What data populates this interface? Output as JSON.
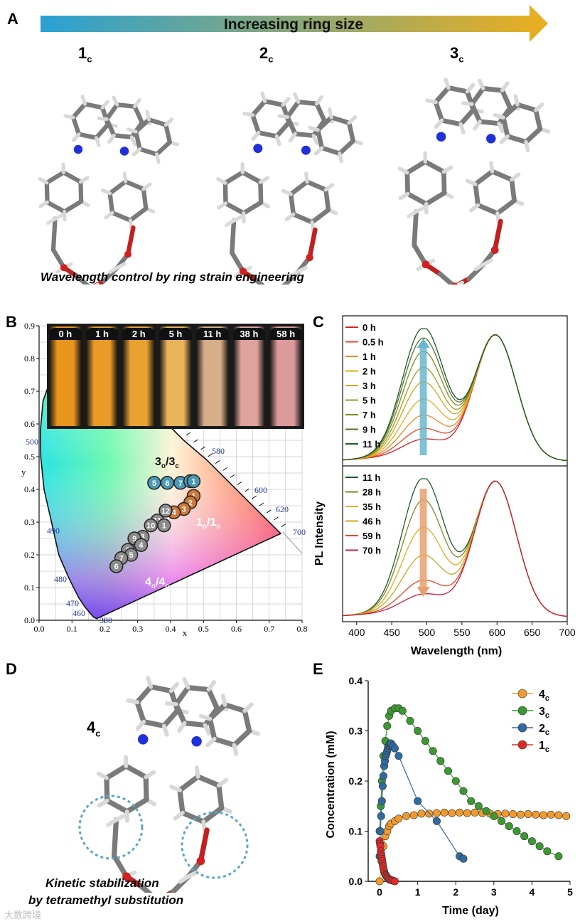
{
  "panel_a": {
    "label": "A",
    "arrow_text": "Increasing ring size",
    "arrow_colors": [
      "#2aa1d4",
      "#ecae1e"
    ],
    "molecules": [
      {
        "name": "1",
        "sub": "c"
      },
      {
        "name": "2",
        "sub": "c"
      },
      {
        "name": "3",
        "sub": "c"
      }
    ],
    "caption": "Wavelength control by ring strain engineering"
  },
  "panel_b": {
    "label": "B",
    "vial_times": [
      "0 h",
      "1 h",
      "2 h",
      "5 h",
      "11 h",
      "38 h",
      "58 h"
    ],
    "vial_colors": [
      "#e8951c",
      "#e99a28",
      "#e9a232",
      "#e7b45a",
      "#d6ae8a",
      "#e0a29c",
      "#dc9a9c"
    ],
    "region_labels": [
      {
        "name": "3",
        "sub": "o",
        "rest": "/3",
        "rest_sub": "c"
      },
      {
        "name": "1",
        "sub": "o",
        "rest": "/1",
        "rest_sub": "c"
      },
      {
        "name": "4",
        "sub": "o",
        "rest": "/4",
        "rest_sub": "c"
      }
    ],
    "locus_wavelengths": [
      "380",
      "460",
      "470",
      "480",
      "490",
      "500",
      "580",
      "600",
      "620",
      "700"
    ],
    "chart_data": {
      "type": "scatter",
      "xlabel": "x",
      "ylabel": "y",
      "xlim": [
        0,
        0.8
      ],
      "ylim": [
        0,
        0.9
      ],
      "xticks": [
        "0.0",
        "0.1",
        "0.2",
        "0.3",
        "0.4",
        "0.5",
        "0.6",
        "0.7",
        "0.8"
      ],
      "yticks": [
        "0.0",
        "0.1",
        "0.2",
        "0.3",
        "0.4",
        "0.5",
        "0.6",
        "0.7",
        "0.8",
        "0.9"
      ],
      "series": [
        {
          "color": "#4a9ab5",
          "points": [
            {
              "label": "5",
              "x": 0.35,
              "y": 0.42
            },
            {
              "label": "6",
              "x": 0.39,
              "y": 0.42
            },
            {
              "label": "7",
              "x": 0.43,
              "y": 0.42
            },
            {
              "label": "8",
              "x": 0.46,
              "y": 0.425
            },
            {
              "label": "1",
              "x": 0.47,
              "y": 0.425
            }
          ]
        },
        {
          "color": "#d07838",
          "points": [
            {
              "label": "1",
              "x": 0.47,
              "y": 0.38
            },
            {
              "label": "2",
              "x": 0.46,
              "y": 0.36
            },
            {
              "label": "3",
              "x": 0.44,
              "y": 0.34
            },
            {
              "label": "4",
              "x": 0.41,
              "y": 0.33
            }
          ]
        },
        {
          "color": "#8c8c8c",
          "points": [
            {
              "label": "12",
              "x": 0.385,
              "y": 0.335
            },
            {
              "label": "11",
              "x": 0.36,
              "y": 0.305
            },
            {
              "label": "10",
              "x": 0.34,
              "y": 0.29
            },
            {
              "label": "1",
              "x": 0.38,
              "y": 0.29
            },
            {
              "label": "3",
              "x": 0.315,
              "y": 0.255
            },
            {
              "label": "9",
              "x": 0.29,
              "y": 0.25
            },
            {
              "label": "4",
              "x": 0.31,
              "y": 0.23
            },
            {
              "label": "8",
              "x": 0.27,
              "y": 0.215
            },
            {
              "label": "5",
              "x": 0.28,
              "y": 0.2
            },
            {
              "label": "7",
              "x": 0.25,
              "y": 0.19
            },
            {
              "label": "6",
              "x": 0.235,
              "y": 0.165
            }
          ]
        }
      ]
    }
  },
  "panel_c": {
    "label": "C",
    "chart_data": {
      "type": "line",
      "xlabel": "Wavelength (nm)",
      "ylabel": "PL Intensity",
      "xlim": [
        380,
        700
      ],
      "xticks": [
        "400",
        "450",
        "500",
        "550",
        "600",
        "650",
        "700"
      ],
      "top_legend": [
        {
          "name": "0 h",
          "color": "#d8202a"
        },
        {
          "name": "0.5 h",
          "color": "#e24a2a"
        },
        {
          "name": "1 h",
          "color": "#ea8a22"
        },
        {
          "name": "2 h",
          "color": "#e9a91e"
        },
        {
          "name": "3 h",
          "color": "#c8a81c"
        },
        {
          "name": "5 h",
          "color": "#a49a20"
        },
        {
          "name": "7 h",
          "color": "#7c8a24"
        },
        {
          "name": "9 h",
          "color": "#4d7628"
        },
        {
          "name": "11 h",
          "color": "#1e5a28"
        }
      ],
      "bottom_legend": [
        {
          "name": "11 h",
          "color": "#1e5a28"
        },
        {
          "name": "28 h",
          "color": "#7c8a24"
        },
        {
          "name": "35 h",
          "color": "#e9a91e"
        },
        {
          "name": "46 h",
          "color": "#c8a81c"
        },
        {
          "name": "59 h",
          "color": "#e24a2a"
        },
        {
          "name": "70 h",
          "color": "#c8203a"
        }
      ],
      "top_shoulder_intensity": [
        0.12,
        0.2,
        0.3,
        0.42,
        0.55,
        0.66,
        0.78,
        0.88,
        0.96
      ],
      "bottom_shoulder_intensity": [
        0.96,
        0.8,
        0.6,
        0.4,
        0.22,
        0.12
      ],
      "arrow_top_color": "#6bb6cf",
      "arrow_bottom_color": "#e9a070"
    }
  },
  "panel_d": {
    "label": "D",
    "molecule": {
      "name": "4",
      "sub": "c"
    },
    "caption_line1": "Kinetic stabilization",
    "caption_line2": "by tetramethyl substitution"
  },
  "panel_e": {
    "label": "E",
    "chart_data": {
      "type": "line",
      "xlabel": "Time (day)",
      "ylabel": "Concentration (mM)",
      "xlim": [
        -0.3,
        5
      ],
      "ylim": [
        0,
        0.4
      ],
      "xticks": [
        "0",
        "1",
        "2",
        "3",
        "4",
        "5"
      ],
      "yticks": [
        "0.0",
        "0.1",
        "0.2",
        "0.3",
        "0.4"
      ],
      "legend_position": "top-right",
      "series": [
        {
          "name": "4",
          "sub": "c",
          "color": "#f39a2c",
          "x": [
            0.0,
            0.05,
            0.1,
            0.15,
            0.2,
            0.25,
            0.3,
            0.4,
            0.5,
            0.7,
            0.9,
            1.1,
            1.3,
            1.5,
            1.7,
            1.9,
            2.1,
            2.3,
            2.5,
            2.7,
            2.9,
            3.1,
            3.3,
            3.5,
            3.7,
            3.9,
            4.1,
            4.3,
            4.5,
            4.7,
            4.9
          ],
          "y": [
            0.0,
            0.04,
            0.07,
            0.09,
            0.1,
            0.11,
            0.115,
            0.12,
            0.125,
            0.13,
            0.132,
            0.135,
            0.135,
            0.136,
            0.137,
            0.136,
            0.137,
            0.136,
            0.137,
            0.136,
            0.135,
            0.134,
            0.135,
            0.134,
            0.133,
            0.134,
            0.133,
            0.132,
            0.133,
            0.132,
            0.13
          ]
        },
        {
          "name": "3",
          "sub": "c",
          "color": "#3a9a30",
          "x": [
            0.0,
            0.03,
            0.06,
            0.1,
            0.15,
            0.2,
            0.25,
            0.3,
            0.4,
            0.5,
            0.6,
            0.8,
            1.0,
            1.2,
            1.4,
            1.6,
            1.8,
            2.0,
            2.2,
            2.4,
            2.6,
            2.8,
            3.0,
            3.2,
            3.4,
            3.6,
            3.8,
            4.0,
            4.2,
            4.4,
            4.7
          ],
          "y": [
            0.1,
            0.15,
            0.2,
            0.25,
            0.28,
            0.31,
            0.33,
            0.34,
            0.345,
            0.345,
            0.34,
            0.32,
            0.3,
            0.28,
            0.26,
            0.24,
            0.22,
            0.2,
            0.18,
            0.16,
            0.15,
            0.14,
            0.13,
            0.12,
            0.11,
            0.1,
            0.09,
            0.08,
            0.07,
            0.06,
            0.05
          ]
        },
        {
          "name": "2",
          "sub": "c",
          "color": "#2f6aa0",
          "x": [
            0.0,
            0.02,
            0.04,
            0.06,
            0.08,
            0.1,
            0.12,
            0.14,
            0.16,
            0.18,
            0.2,
            0.22,
            0.24,
            0.26,
            0.28,
            0.3,
            0.35,
            0.4,
            0.5,
            1.0,
            1.5,
            2.1,
            2.2
          ],
          "y": [
            0.05,
            0.1,
            0.13,
            0.16,
            0.19,
            0.21,
            0.23,
            0.24,
            0.25,
            0.255,
            0.26,
            0.265,
            0.27,
            0.272,
            0.275,
            0.275,
            0.27,
            0.265,
            0.25,
            0.16,
            0.12,
            0.05,
            0.045
          ]
        },
        {
          "name": "1",
          "sub": "c",
          "color": "#e02a2a",
          "x": [
            0.0,
            0.01,
            0.02,
            0.03,
            0.04,
            0.05,
            0.06,
            0.07,
            0.08,
            0.09,
            0.1,
            0.12,
            0.14,
            0.16,
            0.18,
            0.2,
            0.22,
            0.25,
            0.28,
            0.32,
            0.36,
            0.4
          ],
          "y": [
            0.08,
            0.075,
            0.07,
            0.06,
            0.055,
            0.05,
            0.045,
            0.04,
            0.035,
            0.03,
            0.025,
            0.02,
            0.015,
            0.012,
            0.01,
            0.008,
            0.006,
            0.004,
            0.003,
            0.002,
            0.001,
            0.0
          ]
        }
      ]
    }
  },
  "watermark": "大数跨境"
}
